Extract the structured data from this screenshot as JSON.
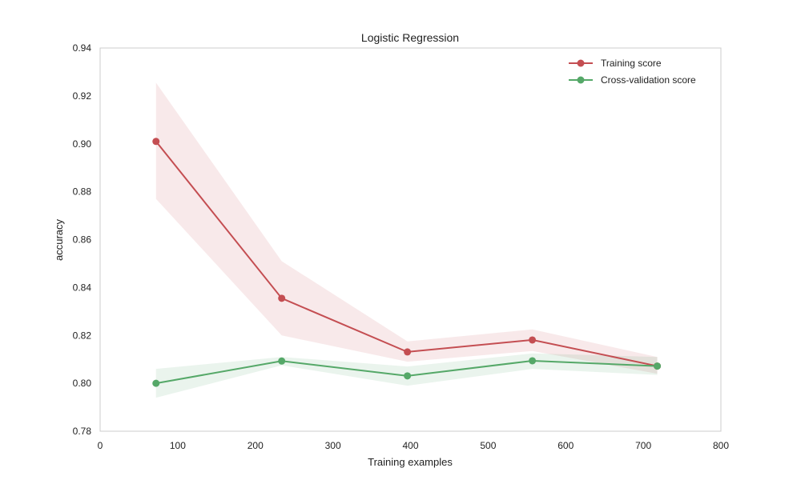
{
  "chart_data": {
    "type": "line",
    "title": "Logistic Regression",
    "xlabel": "Training examples",
    "ylabel": "accuracy",
    "xlim": [
      0,
      800
    ],
    "ylim": [
      0.78,
      0.94
    ],
    "xticks": [
      "0",
      "100",
      "200",
      "300",
      "400",
      "500",
      "600",
      "700",
      "800"
    ],
    "yticks": [
      "0.78",
      "0.80",
      "0.82",
      "0.84",
      "0.86",
      "0.88",
      "0.90",
      "0.92",
      "0.94"
    ],
    "grid": false,
    "legend_position": "top-right",
    "x": [
      72,
      234,
      396,
      557,
      718
    ],
    "series": [
      {
        "name": "Training score",
        "color": "#c44e52",
        "values": [
          0.901,
          0.8355,
          0.8131,
          0.8181,
          0.8072
        ],
        "band_lower": [
          0.877,
          0.82,
          0.809,
          0.8135,
          0.804
        ],
        "band_upper": [
          0.9255,
          0.851,
          0.8175,
          0.8225,
          0.811
        ]
      },
      {
        "name": "Cross-validation score",
        "color": "#55a868",
        "values": [
          0.8,
          0.8093,
          0.8031,
          0.8094,
          0.8072
        ],
        "band_lower": [
          0.794,
          0.8075,
          0.799,
          0.806,
          0.8035
        ],
        "band_upper": [
          0.806,
          0.811,
          0.807,
          0.8125,
          0.811
        ]
      }
    ]
  }
}
